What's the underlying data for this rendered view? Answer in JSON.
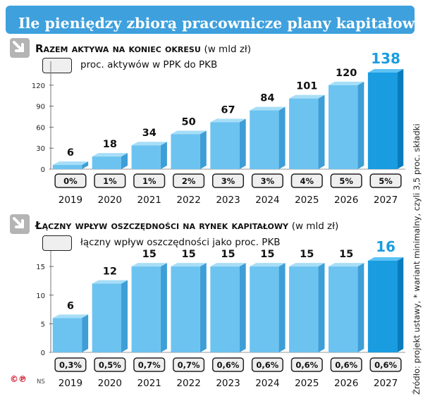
{
  "title": "Ile pieniędzy zbiorą pracownicze plany kapitałowe*",
  "source": "Źródło: projekt ustawy, * wariant minimalny, czyli 3,5 proc. składki",
  "logo": {
    "mark": "©℗",
    "initials": "NS"
  },
  "colors": {
    "title_bg": "#3ea0dd",
    "bar": "#6cc3f0",
    "bar_highlight": "#1a9ce0",
    "highlight_label": "#1a9ce0"
  },
  "sections": [
    {
      "title": "Razem aktywa na koniec okresu",
      "unit": "(w mld zł)",
      "legend": "proc. aktywów w PPK do PKB"
    },
    {
      "title": "Łączny wpływ oszczędności na rynek kapitałowy",
      "unit": "(w mld zł)",
      "legend": "łączny wpływ oszczędności jako proc. PKB"
    }
  ],
  "chart_data": [
    {
      "type": "bar",
      "categories": [
        "2019",
        "2020",
        "2021",
        "2022",
        "2023",
        "2024",
        "2025",
        "2026",
        "2027"
      ],
      "values": [
        6,
        18,
        34,
        50,
        67,
        84,
        101,
        120,
        138
      ],
      "value_labels": [
        "6",
        "18",
        "34",
        "50",
        "67",
        "84",
        "101",
        "120",
        "138"
      ],
      "percent_labels": [
        "0%",
        "1%",
        "1%",
        "2%",
        "3%",
        "3%",
        "4%",
        "5%",
        "5%"
      ],
      "yticks": [
        "0",
        "30",
        "60",
        "90",
        "120"
      ],
      "ylim": [
        0,
        140
      ],
      "highlight_index": 8
    },
    {
      "type": "bar",
      "categories": [
        "2019",
        "2020",
        "2021",
        "2022",
        "2023",
        "2024",
        "2025",
        "2026",
        "2027"
      ],
      "values": [
        6,
        12,
        15,
        15,
        15,
        15,
        15,
        15,
        16
      ],
      "value_labels": [
        "6",
        "12",
        "15",
        "15",
        "15",
        "15",
        "15",
        "15",
        "16"
      ],
      "percent_labels": [
        "0,3%",
        "0,5%",
        "0,7%",
        "0,7%",
        "0,6%",
        "0,6%",
        "0,6%",
        "0,6%",
        "0,6%"
      ],
      "yticks": [
        "0",
        "5",
        "10",
        "15"
      ],
      "ylim": [
        0,
        16
      ],
      "highlight_index": 8
    }
  ]
}
